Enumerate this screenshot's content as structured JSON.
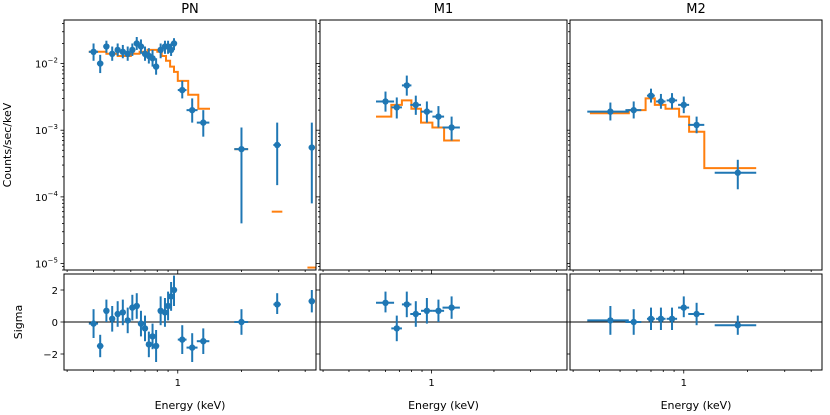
{
  "chart_data": {
    "type": "scatter",
    "figure": {
      "ylabel_top": "Counts/sec/keV",
      "ylabel_bottom": "Sigma",
      "xlabel": "Energy (keV)",
      "x_scale": "log",
      "xlim": [
        0.29,
        4.5
      ],
      "ylim_top": [
        8e-06,
        0.045
      ],
      "ylim_bottom": [
        -3,
        3
      ],
      "x_tick_label": "1",
      "y_tick_labels_top": [
        "10^-2",
        "10^-3",
        "10^-4",
        "10^-5"
      ],
      "y_tick_labels_bottom": [
        "2",
        "0",
        "−2"
      ],
      "colors": {
        "data": "#1f77b4",
        "model": "#ff7f0e",
        "zero_line": "#000000"
      }
    },
    "panels": [
      {
        "title": "PN",
        "data": [
          {
            "x": 0.4,
            "xerr": 0.02,
            "y": 0.015,
            "ylo": 0.011,
            "yhi": 0.02,
            "sigma": -0.1,
            "slo": -1.0,
            "shi": 0.8
          },
          {
            "x": 0.43,
            "xerr": 0.015,
            "y": 0.01,
            "ylo": 0.0072,
            "yhi": 0.0135,
            "sigma": -1.5,
            "slo": -2.2,
            "shi": -0.8
          },
          {
            "x": 0.46,
            "xerr": 0.015,
            "y": 0.018,
            "ylo": 0.0145,
            "yhi": 0.022,
            "sigma": 0.7,
            "slo": 0.0,
            "shi": 1.4
          },
          {
            "x": 0.49,
            "xerr": 0.015,
            "y": 0.014,
            "ylo": 0.011,
            "yhi": 0.018,
            "sigma": 0.2,
            "slo": -0.6,
            "shi": 1.0
          },
          {
            "x": 0.52,
            "xerr": 0.015,
            "y": 0.016,
            "ylo": 0.013,
            "yhi": 0.02,
            "sigma": 0.5,
            "slo": -0.3,
            "shi": 1.3
          },
          {
            "x": 0.55,
            "xerr": 0.015,
            "y": 0.015,
            "ylo": 0.012,
            "yhi": 0.019,
            "sigma": 0.6,
            "slo": -0.2,
            "shi": 1.4
          },
          {
            "x": 0.58,
            "xerr": 0.015,
            "y": 0.014,
            "ylo": 0.011,
            "yhi": 0.018,
            "sigma": 0.1,
            "slo": -0.7,
            "shi": 0.9
          },
          {
            "x": 0.61,
            "xerr": 0.015,
            "y": 0.016,
            "ylo": 0.013,
            "yhi": 0.02,
            "sigma": 0.9,
            "slo": 0.1,
            "shi": 1.7
          },
          {
            "x": 0.64,
            "xerr": 0.015,
            "y": 0.02,
            "ylo": 0.016,
            "yhi": 0.025,
            "sigma": 1.0,
            "slo": 0.2,
            "shi": 1.8
          },
          {
            "x": 0.67,
            "xerr": 0.015,
            "y": 0.018,
            "ylo": 0.014,
            "yhi": 0.023,
            "sigma": -0.1,
            "slo": -0.9,
            "shi": 0.7
          },
          {
            "x": 0.7,
            "xerr": 0.015,
            "y": 0.014,
            "ylo": 0.011,
            "yhi": 0.018,
            "sigma": -0.4,
            "slo": -1.2,
            "shi": 0.4
          },
          {
            "x": 0.73,
            "xerr": 0.015,
            "y": 0.013,
            "ylo": 0.01,
            "yhi": 0.017,
            "sigma": -1.4,
            "slo": -2.2,
            "shi": -0.6
          },
          {
            "x": 0.76,
            "xerr": 0.015,
            "y": 0.012,
            "ylo": 0.009,
            "yhi": 0.016,
            "sigma": -0.9,
            "slo": -1.7,
            "shi": -0.1
          },
          {
            "x": 0.79,
            "xerr": 0.015,
            "y": 0.009,
            "ylo": 0.0068,
            "yhi": 0.012,
            "sigma": -1.5,
            "slo": -2.5,
            "shi": -0.5
          },
          {
            "x": 0.83,
            "xerr": 0.02,
            "y": 0.016,
            "ylo": 0.012,
            "yhi": 0.02,
            "sigma": 0.7,
            "slo": -0.2,
            "shi": 1.6
          },
          {
            "x": 0.87,
            "xerr": 0.02,
            "y": 0.018,
            "ylo": 0.014,
            "yhi": 0.022,
            "sigma": 0.6,
            "slo": -0.3,
            "shi": 1.5
          },
          {
            "x": 0.9,
            "xerr": 0.015,
            "y": 0.018,
            "ylo": 0.014,
            "yhi": 0.022,
            "sigma": 1.0,
            "slo": 0.1,
            "shi": 1.9
          },
          {
            "x": 0.93,
            "xerr": 0.015,
            "y": 0.016,
            "ylo": 0.013,
            "yhi": 0.02,
            "sigma": 1.6,
            "slo": 0.7,
            "shi": 2.5
          },
          {
            "x": 0.96,
            "xerr": 0.015,
            "y": 0.02,
            "ylo": 0.016,
            "yhi": 0.024,
            "sigma": 2.0,
            "slo": 1.0,
            "shi": 2.9
          },
          {
            "x": 1.05,
            "xerr": 0.05,
            "y": 0.004,
            "ylo": 0.003,
            "yhi": 0.0055,
            "sigma": -1.1,
            "slo": -2.0,
            "shi": -0.2
          },
          {
            "x": 1.17,
            "xerr": 0.07,
            "y": 0.002,
            "ylo": 0.0013,
            "yhi": 0.003,
            "sigma": -1.6,
            "slo": -2.5,
            "shi": -0.7
          },
          {
            "x": 1.32,
            "xerr": 0.09,
            "y": 0.0013,
            "ylo": 0.0008,
            "yhi": 0.002,
            "sigma": -1.2,
            "slo": -2.0,
            "shi": -0.4
          },
          {
            "x": 2.0,
            "xerr": 0.15,
            "y": 0.00052,
            "ylo": 4e-05,
            "yhi": 0.0011,
            "sigma": 0.0,
            "slo": -0.8,
            "shi": 0.8
          },
          {
            "x": 2.95,
            "xerr": 0.12,
            "y": 0.0006,
            "ylo": 0.00015,
            "yhi": 0.0013,
            "sigma": 1.1,
            "slo": 0.5,
            "shi": 1.8
          },
          {
            "x": 4.3,
            "xerr": 0.15,
            "y": 0.00055,
            "ylo": 8e-05,
            "yhi": 0.0013,
            "sigma": 1.3,
            "slo": 0.6,
            "shi": 2.0
          }
        ],
        "model_step": [
          [
            0.38,
            0.015
          ],
          [
            0.46,
            0.015
          ],
          [
            0.46,
            0.014
          ],
          [
            0.52,
            0.014
          ],
          [
            0.52,
            0.013
          ],
          [
            0.6,
            0.013
          ],
          [
            0.6,
            0.014
          ],
          [
            0.66,
            0.014
          ],
          [
            0.66,
            0.015
          ],
          [
            0.72,
            0.015
          ],
          [
            0.72,
            0.016
          ],
          [
            0.8,
            0.016
          ],
          [
            0.8,
            0.015
          ],
          [
            0.84,
            0.015
          ],
          [
            0.84,
            0.013
          ],
          [
            0.88,
            0.013
          ],
          [
            0.88,
            0.011
          ],
          [
            0.92,
            0.011
          ],
          [
            0.92,
            0.009
          ],
          [
            0.96,
            0.009
          ],
          [
            0.96,
            0.0075
          ],
          [
            1.0,
            0.0075
          ],
          [
            1.0,
            0.0055
          ],
          [
            1.12,
            0.0055
          ],
          [
            1.12,
            0.0034
          ],
          [
            1.25,
            0.0034
          ],
          [
            1.25,
            0.0021
          ],
          [
            1.42,
            0.0021
          ]
        ],
        "model_segments": [
          {
            "x0": 1.85,
            "x1": 2.15,
            "y": 0.00052
          },
          {
            "x0": 2.78,
            "x1": 3.12,
            "y": 6e-05
          },
          {
            "x0": 4.1,
            "x1": 4.5,
            "y": 8.7e-06
          }
        ]
      },
      {
        "title": "M1",
        "data": [
          {
            "x": 0.6,
            "xerr": 0.06,
            "y": 0.0027,
            "ylo": 0.0019,
            "yhi": 0.0038,
            "sigma": 1.2,
            "slo": 0.6,
            "shi": 1.9
          },
          {
            "x": 0.68,
            "xerr": 0.04,
            "y": 0.0022,
            "ylo": 0.0015,
            "yhi": 0.0031,
            "sigma": -0.4,
            "slo": -1.2,
            "shi": 0.4
          },
          {
            "x": 0.76,
            "xerr": 0.04,
            "y": 0.0047,
            "ylo": 0.0033,
            "yhi": 0.0066,
            "sigma": 1.1,
            "slo": 0.3,
            "shi": 1.9
          },
          {
            "x": 0.84,
            "xerr": 0.05,
            "y": 0.0024,
            "ylo": 0.0017,
            "yhi": 0.0033,
            "sigma": 0.5,
            "slo": -0.3,
            "shi": 1.3
          },
          {
            "x": 0.95,
            "xerr": 0.06,
            "y": 0.0019,
            "ylo": 0.0013,
            "yhi": 0.0027,
            "sigma": 0.7,
            "slo": -0.1,
            "shi": 1.5
          },
          {
            "x": 1.08,
            "xerr": 0.07,
            "y": 0.0016,
            "ylo": 0.0011,
            "yhi": 0.0023,
            "sigma": 0.7,
            "slo": 0.0,
            "shi": 1.4
          },
          {
            "x": 1.25,
            "xerr": 0.12,
            "y": 0.0011,
            "ylo": 0.0007,
            "yhi": 0.0016,
            "sigma": 0.9,
            "slo": 0.2,
            "shi": 1.6
          }
        ],
        "model_step": [
          [
            0.54,
            0.0016
          ],
          [
            0.64,
            0.0016
          ],
          [
            0.64,
            0.0024
          ],
          [
            0.72,
            0.0024
          ],
          [
            0.72,
            0.0028
          ],
          [
            0.8,
            0.0028
          ],
          [
            0.8,
            0.0021
          ],
          [
            0.89,
            0.0021
          ],
          [
            0.89,
            0.0013
          ],
          [
            1.01,
            0.0013
          ],
          [
            1.01,
            0.0011
          ],
          [
            1.15,
            0.0011
          ],
          [
            1.15,
            0.0007
          ],
          [
            1.37,
            0.0007
          ]
        ],
        "model_segments": []
      },
      {
        "title": "M2",
        "data": [
          {
            "x": 0.45,
            "xerr": 0.1,
            "y": 0.0019,
            "ylo": 0.0014,
            "yhi": 0.0026,
            "sigma": 0.1,
            "slo": -0.8,
            "shi": 1.0
          },
          {
            "x": 0.58,
            "xerr": 0.05,
            "y": 0.002,
            "ylo": 0.0015,
            "yhi": 0.0027,
            "sigma": 0.0,
            "slo": -0.8,
            "shi": 0.8
          },
          {
            "x": 0.7,
            "xerr": 0.03,
            "y": 0.0033,
            "ylo": 0.0026,
            "yhi": 0.0042,
            "sigma": 0.2,
            "slo": -0.5,
            "shi": 0.9
          },
          {
            "x": 0.78,
            "xerr": 0.04,
            "y": 0.0027,
            "ylo": 0.0021,
            "yhi": 0.0035,
            "sigma": 0.2,
            "slo": -0.5,
            "shi": 0.9
          },
          {
            "x": 0.88,
            "xerr": 0.05,
            "y": 0.0028,
            "ylo": 0.0021,
            "yhi": 0.0036,
            "sigma": 0.2,
            "slo": -0.5,
            "shi": 0.9
          },
          {
            "x": 1.0,
            "xerr": 0.06,
            "y": 0.0024,
            "ylo": 0.0018,
            "yhi": 0.0032,
            "sigma": 0.9,
            "slo": 0.3,
            "shi": 1.6
          },
          {
            "x": 1.15,
            "xerr": 0.1,
            "y": 0.0012,
            "ylo": 0.0009,
            "yhi": 0.0016,
            "sigma": 0.5,
            "slo": -0.2,
            "shi": 1.2
          },
          {
            "x": 1.8,
            "xerr": 0.4,
            "y": 0.00023,
            "ylo": 0.00013,
            "yhi": 0.00036,
            "sigma": -0.2,
            "slo": -0.8,
            "shi": 0.4
          }
        ],
        "model_step": [
          [
            0.36,
            0.0018
          ],
          [
            0.55,
            0.0018
          ],
          [
            0.55,
            0.002
          ],
          [
            0.66,
            0.002
          ],
          [
            0.66,
            0.003
          ],
          [
            0.73,
            0.003
          ],
          [
            0.73,
            0.0024
          ],
          [
            0.82,
            0.0024
          ],
          [
            0.82,
            0.0021
          ],
          [
            0.95,
            0.0021
          ],
          [
            0.95,
            0.0016
          ],
          [
            1.06,
            0.0016
          ],
          [
            1.06,
            0.00095
          ],
          [
            1.25,
            0.00095
          ],
          [
            1.25,
            0.00027
          ],
          [
            2.2,
            0.00027
          ]
        ],
        "model_segments": []
      }
    ]
  }
}
